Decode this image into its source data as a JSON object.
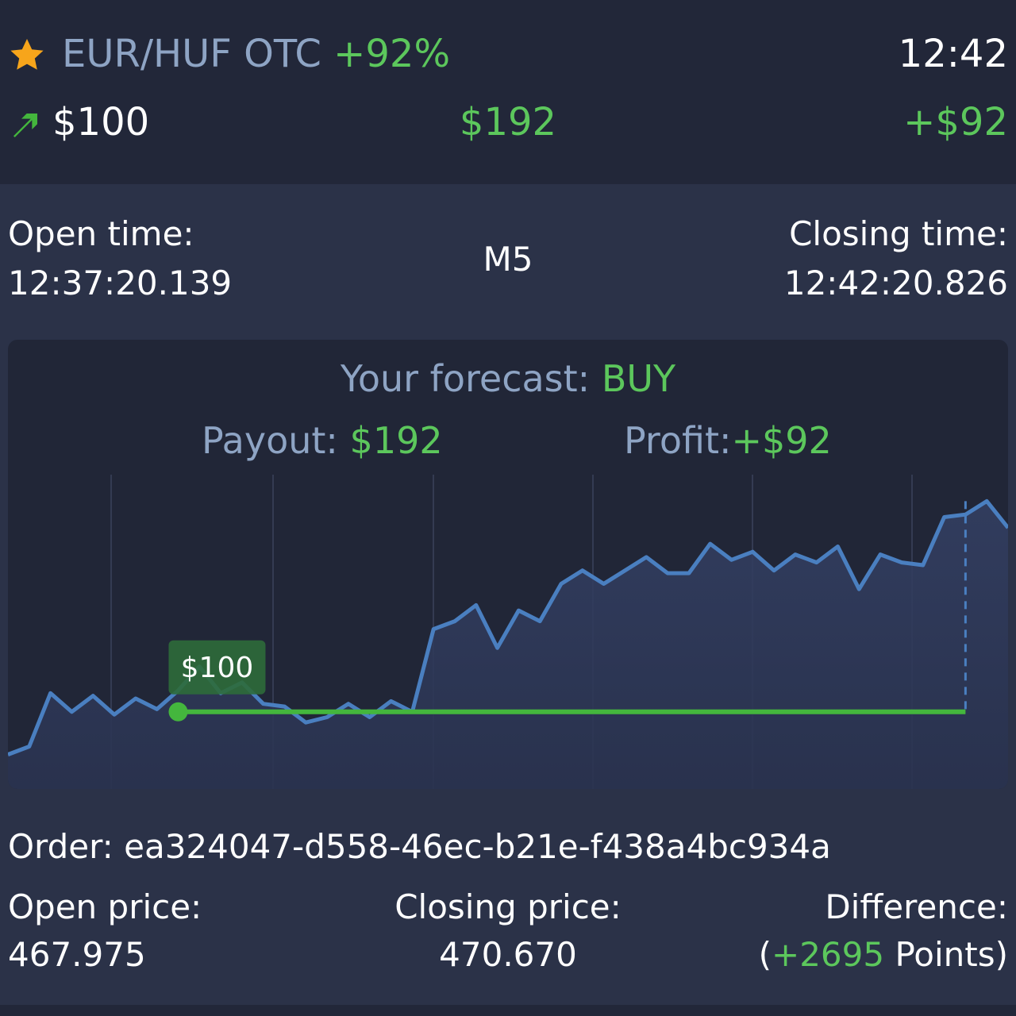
{
  "header": {
    "asset": "EUR/HUF OTC",
    "payout_percent": "+92%",
    "clock": "12:42",
    "investment": "$100",
    "payout": "$192",
    "profit": "+$92",
    "colors": {
      "accent_green": "#5cc75c",
      "label_blue": "#8ea4c4",
      "star": "#f7a51b"
    },
    "icons": [
      "star-icon",
      "arrow-up-right-icon"
    ]
  },
  "times": {
    "open_label": "Open time:",
    "open_value": "12:37:20.139",
    "period": "M5",
    "close_label": "Closing time:",
    "close_value": "12:42:20.826"
  },
  "forecast": {
    "label": "Your forecast: ",
    "direction": "BUY",
    "payout_label": "Payout: ",
    "payout_value": "$192",
    "profit_label": "Profit:",
    "profit_value": "+$92",
    "entry_badge": "$100"
  },
  "chart_data": {
    "type": "line",
    "series": [
      {
        "values": [
          0.04,
          0.07,
          0.27,
          0.2,
          0.26,
          0.19,
          0.25,
          0.21,
          0.28,
          0.37,
          0.27,
          0.31,
          0.23,
          0.22,
          0.16,
          0.18,
          0.23,
          0.18,
          0.24,
          0.2,
          0.51,
          0.54,
          0.6,
          0.44,
          0.58,
          0.54,
          0.68,
          0.73,
          0.68,
          0.73,
          0.78,
          0.72,
          0.72,
          0.83,
          0.77,
          0.8,
          0.73,
          0.79,
          0.76,
          0.82,
          0.66,
          0.79,
          0.76,
          0.75,
          0.93,
          0.94,
          0.99,
          0.89
        ]
      }
    ],
    "entry_level": 0.2,
    "entry_index": 8,
    "x_range": [
      0,
      47
    ],
    "y_range": [
      0,
      1
    ],
    "grid": "vertical",
    "colors": {
      "line": "#4a7fc0",
      "entry_line": "#44b63d"
    }
  },
  "details": {
    "order_label": "Order: ",
    "order_id": "ea324047-d558-46ec-b21e-f438a4bc934a",
    "open_price_label": "Open price:",
    "open_price_value": "467.975",
    "close_price_label": "Closing price:",
    "close_price_value": "470.670",
    "difference_label": "Difference:",
    "difference_open": "(",
    "difference_points": "+2695",
    "difference_unit": " Points)"
  }
}
